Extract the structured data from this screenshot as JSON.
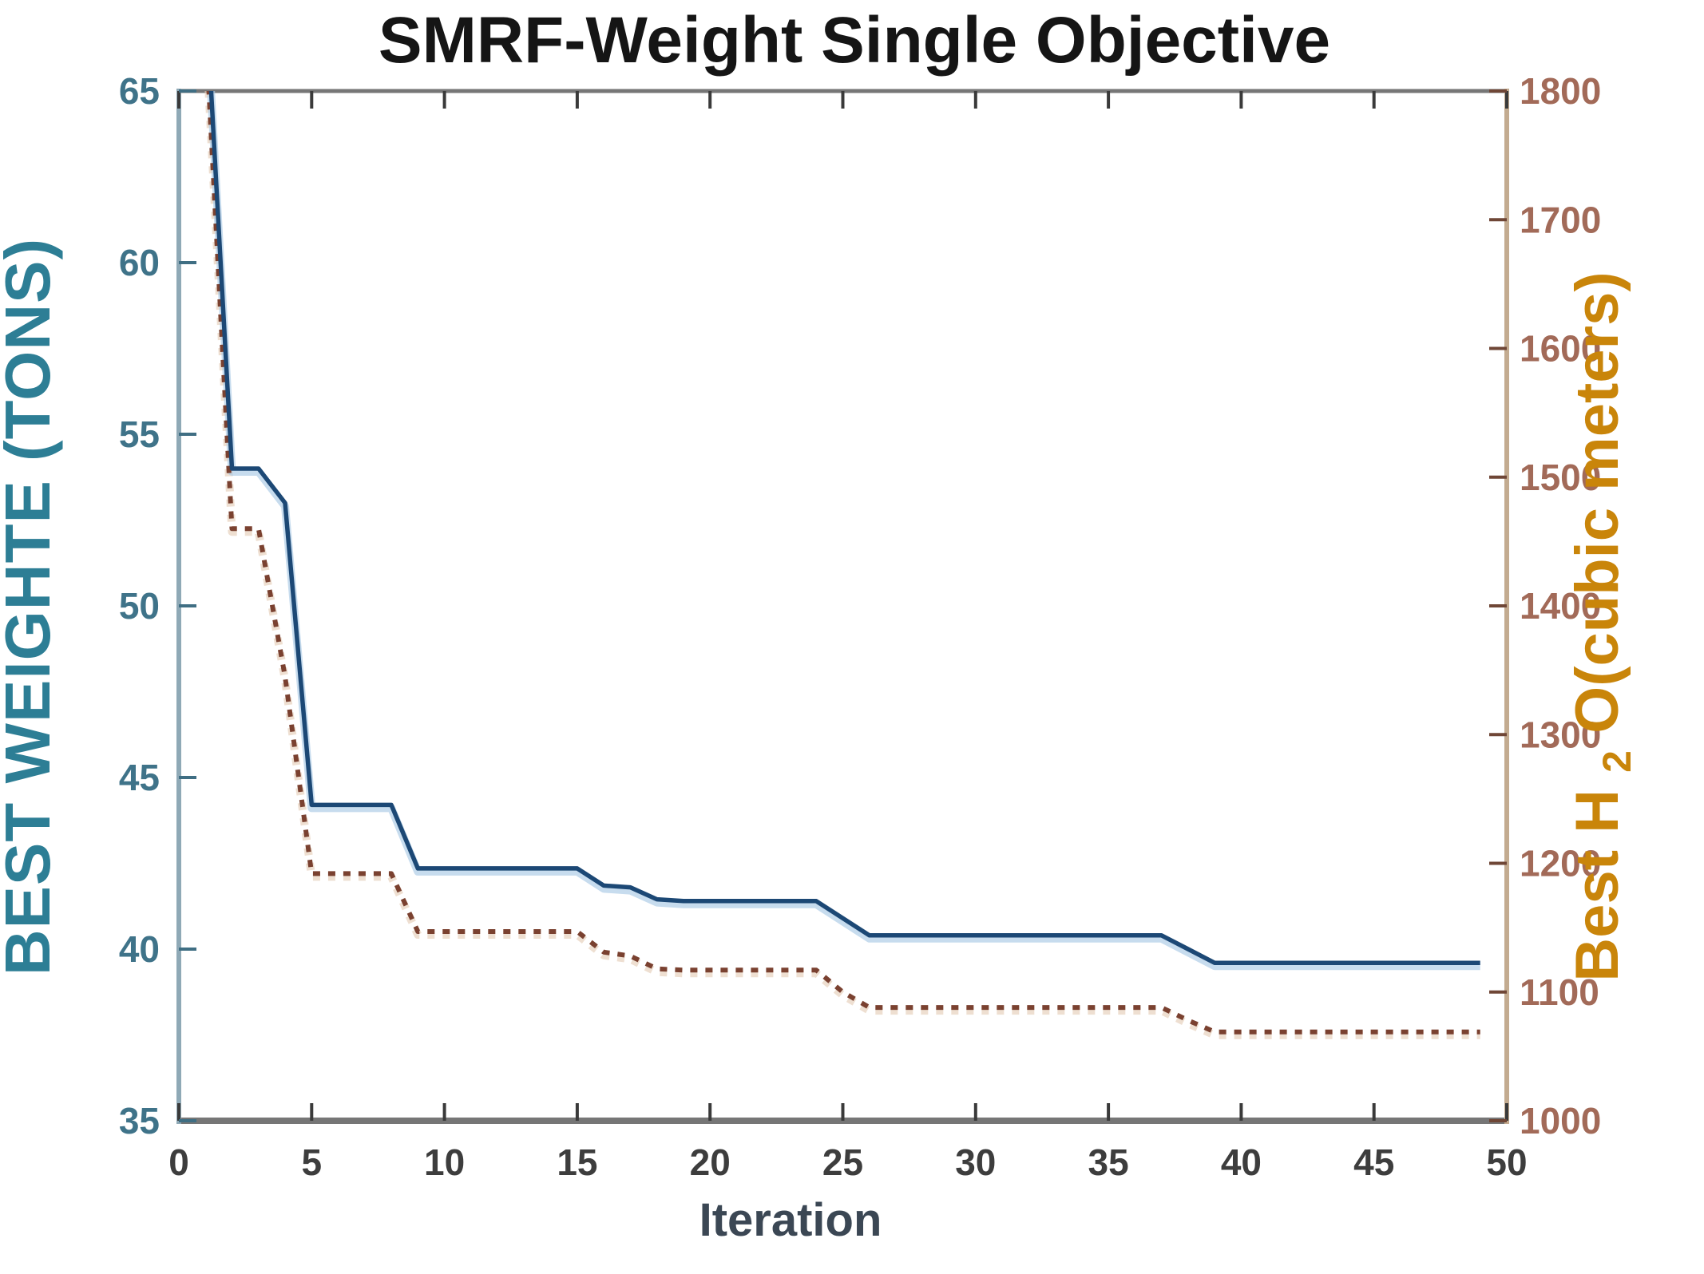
{
  "title": "SMRF-Weight Single Objective",
  "chart_data": {
    "type": "line",
    "title": "SMRF-Weight Single Objective",
    "title_color": "#151515",
    "frame_color": "#767676",
    "grid": false,
    "legend": "none",
    "x_axis": {
      "label": "Iteration",
      "label_color": "#3b4754",
      "tick_color": "#3d3d3d",
      "min": 0,
      "max": 50,
      "ticks": [
        0,
        5,
        10,
        15,
        20,
        25,
        30,
        35,
        40,
        45,
        50
      ]
    },
    "y_left": {
      "label": "BEST WEIGHTE (TONS)",
      "label_color": "#2d7e95",
      "tick_color": "#3f7389",
      "spine_color": "#8fa9b6",
      "min": 35,
      "max": 65,
      "ticks": [
        65,
        60,
        55,
        50,
        45,
        40,
        35
      ]
    },
    "y_right": {
      "label_pre": "Best H",
      "label_sub": "2",
      "label_post": "O(cubic meters)",
      "label_color": "#c9850a",
      "tick_color": "#a26a58",
      "spine_color": "#c3ab90",
      "min": 1000,
      "max": 1800,
      "ticks": [
        1800,
        1700,
        1600,
        1500,
        1400,
        1300,
        1200,
        1100,
        1000
      ]
    },
    "series": [
      {
        "name": "Best Weight (tons)",
        "axis": "left",
        "line_style": "solid",
        "color": "#1c4875",
        "halo_color": "#a9c9e5",
        "x": [
          1,
          2,
          3,
          4,
          5,
          6,
          7,
          8,
          9,
          10,
          11,
          12,
          13,
          14,
          15,
          16,
          17,
          18,
          19,
          20,
          21,
          22,
          23,
          24,
          25,
          26,
          27,
          28,
          29,
          30,
          31,
          32,
          33,
          34,
          35,
          36,
          37,
          38,
          39,
          40,
          41,
          42,
          43,
          44,
          45,
          46,
          47,
          48,
          49
        ],
        "y": [
          68,
          54,
          54,
          53,
          44.2,
          44.2,
          44.2,
          44.2,
          42.35,
          42.35,
          42.35,
          42.35,
          42.35,
          42.35,
          42.35,
          41.85,
          41.8,
          41.45,
          41.4,
          41.4,
          41.4,
          41.4,
          41.4,
          41.4,
          40.9,
          40.4,
          40.4,
          40.4,
          40.4,
          40.4,
          40.4,
          40.4,
          40.4,
          40.4,
          40.4,
          40.4,
          40.4,
          40.0,
          39.6,
          39.6,
          39.6,
          39.6,
          39.6,
          39.6,
          39.6,
          39.6,
          39.6,
          39.6,
          39.6
        ]
      },
      {
        "name": "Best H2O (cubic meters)",
        "axis": "right",
        "line_style": "dotted",
        "color": "#7a4130",
        "halo_color": "#e2c9b2",
        "x": [
          1,
          2,
          3,
          4,
          5,
          6,
          7,
          8,
          9,
          10,
          11,
          12,
          13,
          14,
          15,
          16,
          17,
          18,
          19,
          20,
          21,
          22,
          23,
          24,
          25,
          26,
          27,
          28,
          29,
          30,
          31,
          32,
          33,
          34,
          35,
          36,
          37,
          38,
          39,
          40,
          41,
          42,
          43,
          44,
          45,
          46,
          47,
          48,
          49
        ],
        "y": [
          1850,
          1460,
          1460,
          1345,
          1192,
          1192,
          1192,
          1192,
          1147,
          1147,
          1147,
          1147,
          1147,
          1147,
          1147,
          1131,
          1128,
          1118,
          1117,
          1117,
          1117,
          1117,
          1117,
          1117,
          1100,
          1088,
          1088,
          1088,
          1088,
          1088,
          1088,
          1088,
          1088,
          1088,
          1088,
          1088,
          1088,
          1078,
          1069,
          1069,
          1069,
          1069,
          1069,
          1069,
          1069,
          1069,
          1069,
          1069,
          1069
        ]
      }
    ]
  }
}
